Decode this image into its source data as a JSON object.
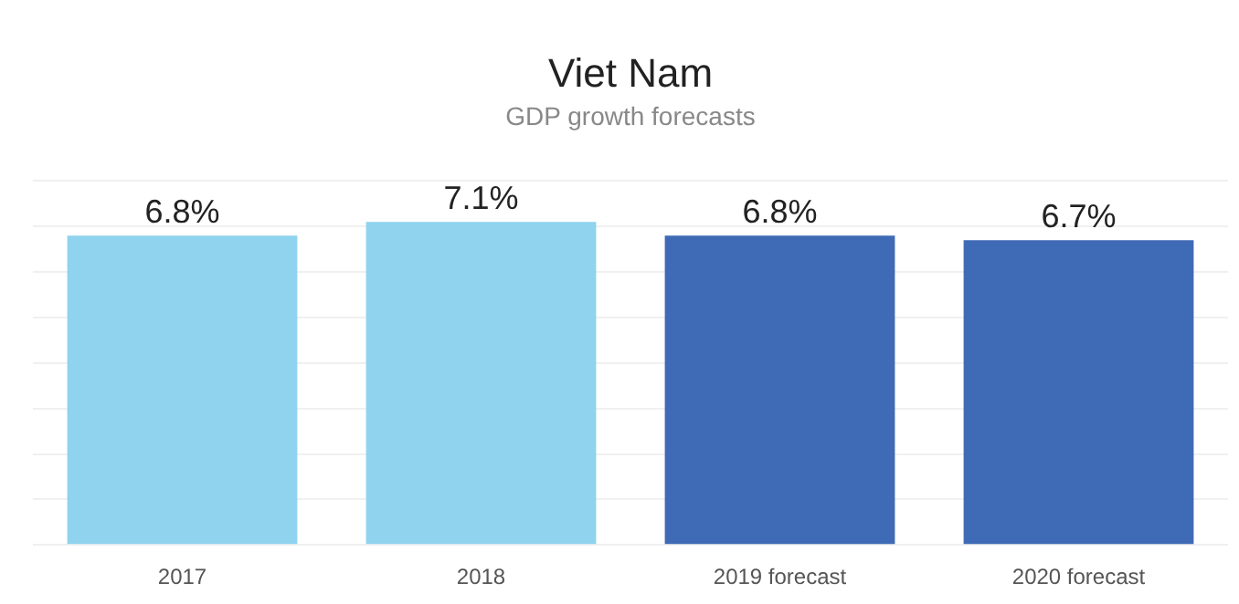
{
  "chart_data": {
    "type": "bar",
    "title": "Viet Nam",
    "subtitle": "GDP growth forecasts",
    "categories": [
      "2017",
      "2018",
      "2019 forecast",
      "2020 forecast"
    ],
    "values": [
      6.8,
      7.1,
      6.8,
      6.7
    ],
    "value_labels": [
      "6.8%",
      "7.1%",
      "6.8%",
      "6.7%"
    ],
    "colors": [
      "#8fd3ee",
      "#8fd3ee",
      "#3f6ab5",
      "#3f6ab5"
    ],
    "ylim": [
      0,
      8
    ],
    "yticks": [
      {
        "value": 0,
        "label": null
      },
      {
        "value": 1,
        "label": null
      },
      {
        "value": 2,
        "label": null
      },
      {
        "value": 3,
        "label": null
      },
      {
        "value": 4,
        "label": null
      },
      {
        "value": 5,
        "label": null
      },
      {
        "value": 6,
        "label": null
      },
      {
        "value": 7,
        "label": null
      },
      {
        "value": 8,
        "label": null
      }
    ],
    "tick_labels": "x",
    "grid": "y"
  }
}
